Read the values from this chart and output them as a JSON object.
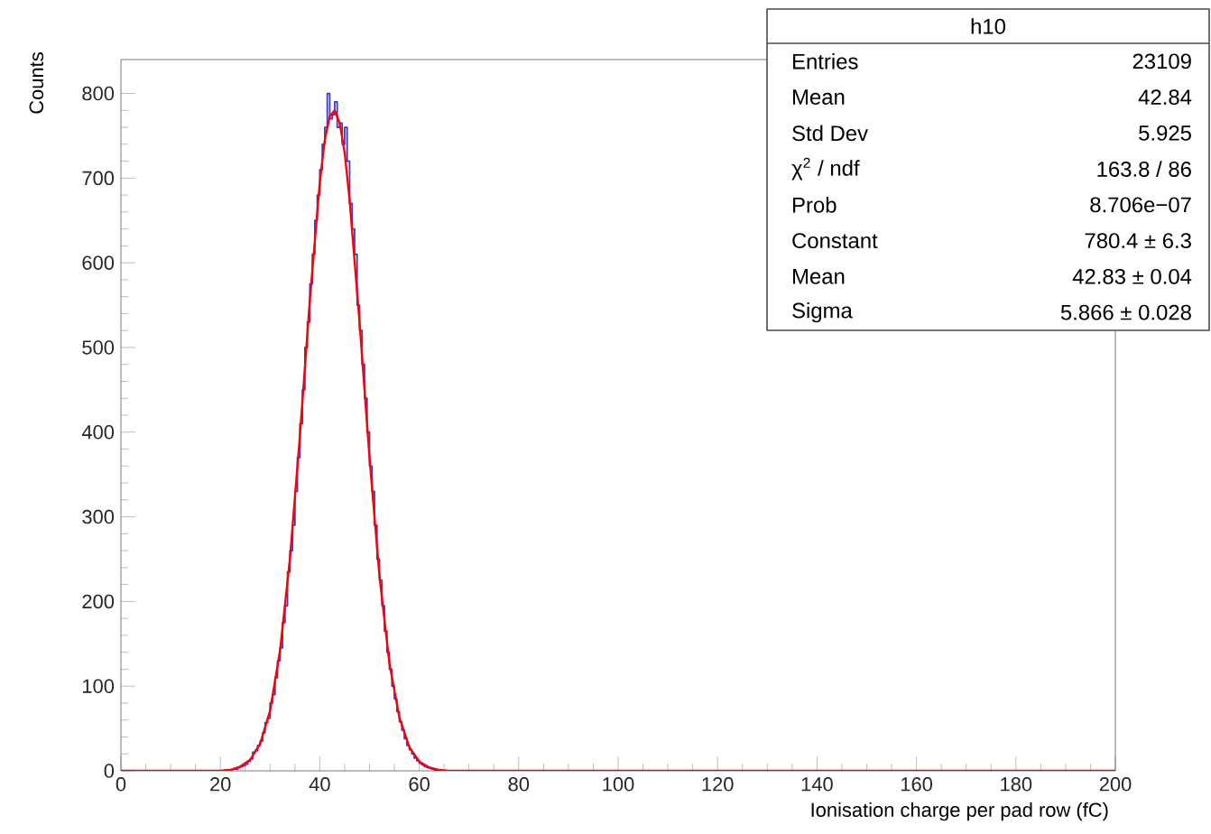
{
  "chart_data": {
    "type": "histogram",
    "xlabel": "Ionisation charge per pad row (fC)",
    "ylabel": "Counts",
    "xlim": [
      0,
      200
    ],
    "ylim": [
      0,
      840
    ],
    "xticks": [
      0,
      20,
      40,
      60,
      80,
      100,
      120,
      140,
      160,
      180,
      200
    ],
    "yticks": [
      0,
      100,
      200,
      300,
      400,
      500,
      600,
      700,
      800
    ],
    "series": [
      {
        "color": "#3a3ad0",
        "bins": [
          0,
          20,
          20.5,
          21,
          21.5,
          22,
          22.5,
          23,
          23.5,
          24,
          24.5,
          25,
          25.5,
          26,
          26.5,
          27,
          27.5,
          28,
          28.5,
          29,
          29.5,
          30,
          30.5,
          31,
          31.5,
          32,
          32.5,
          33,
          33.5,
          34,
          34.5,
          35,
          35.5,
          36,
          36.5,
          37,
          37.5,
          38,
          38.5,
          39,
          39.5,
          40,
          40.5,
          41,
          41.5,
          42,
          42.5,
          43,
          43.5,
          44,
          44.5,
          45,
          45.5,
          46,
          46.5,
          47,
          47.5,
          48,
          48.5,
          49,
          49.5,
          50,
          50.5,
          51,
          51.5,
          52,
          52.5,
          53,
          53.5,
          54,
          54.5,
          55,
          55.5,
          56,
          56.5,
          57,
          57.5,
          58,
          58.5,
          59,
          59.5,
          60,
          60.5,
          61,
          61.5,
          62,
          62.5,
          63,
          63.5,
          64,
          64.5,
          65,
          200
        ],
        "values": [
          0,
          0,
          0,
          1,
          1,
          1,
          2,
          2,
          4,
          5,
          6,
          8,
          11,
          14,
          22,
          24,
          30,
          35,
          45,
          57,
          62,
          80,
          90,
          110,
          130,
          145,
          175,
          195,
          235,
          260,
          290,
          330,
          370,
          410,
          450,
          500,
          530,
          575,
          610,
          650,
          680,
          710,
          740,
          760,
          800,
          770,
          775,
          790,
          760,
          765,
          740,
          760,
          720,
          670,
          640,
          610,
          550,
          520,
          480,
          440,
          400,
          360,
          330,
          290,
          250,
          225,
          195,
          165,
          140,
          120,
          100,
          85,
          70,
          58,
          48,
          38,
          30,
          25,
          20,
          15,
          12,
          9,
          7,
          5,
          4,
          3,
          2,
          1,
          1,
          1,
          0,
          0
        ]
      },
      {
        "type": "line",
        "color": "#ff0000",
        "x": [
          0,
          20,
          22,
          24,
          26,
          28,
          30,
          32,
          34,
          36,
          38,
          40,
          41,
          42,
          43,
          44,
          45,
          46,
          48,
          50,
          52,
          54,
          56,
          58,
          60,
          62,
          64,
          66,
          200
        ],
        "values": [
          0,
          0,
          1,
          5,
          13,
          32,
          71,
          142,
          251,
          396,
          556,
          695,
          745,
          773,
          780,
          765,
          730,
          674,
          529,
          370,
          230,
          127,
          63,
          28,
          11,
          4,
          1,
          0,
          0
        ]
      }
    ],
    "annotations": [
      "h10",
      "Entries",
      "23109",
      "Mean",
      "42.84",
      "Std Dev",
      "5.925",
      "χ$^{2}$ / ndf",
      "163.8 / 86",
      "Prob",
      "8.706e−07",
      "Constant",
      "780.4 ± 6.3",
      "Mean",
      "42.83 ± 0.04",
      "Sigma",
      "5.866 ± 0.028"
    ]
  }
}
